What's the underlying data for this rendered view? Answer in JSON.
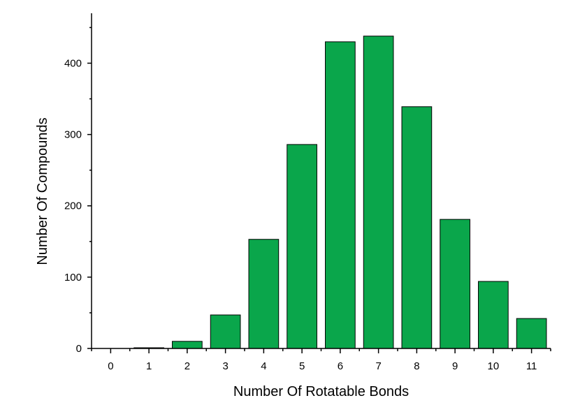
{
  "chart_data": {
    "type": "bar",
    "title": "",
    "xlabel": "Number Of Rotatable Bonds",
    "ylabel": "Number Of Compounds",
    "categories": [
      "0",
      "1",
      "2",
      "3",
      "4",
      "5",
      "6",
      "7",
      "8",
      "9",
      "10",
      "11"
    ],
    "values": [
      0,
      1,
      10,
      47,
      153,
      286,
      430,
      438,
      339,
      181,
      94,
      42
    ],
    "ylim": [
      0,
      470
    ],
    "xlim": [
      -0.5,
      11.5
    ],
    "yticks": [
      0,
      100,
      200,
      300,
      400
    ],
    "yticks_minor": [
      50,
      150,
      250,
      350,
      450
    ],
    "grid": false,
    "legend": "none",
    "bar_color": "#0aa64b",
    "bar_edge_color": "#000000"
  }
}
